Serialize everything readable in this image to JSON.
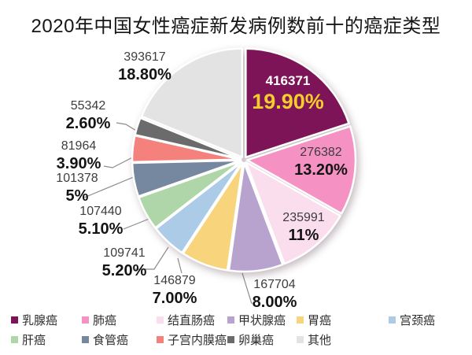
{
  "title": "2020年中国女性癌症新发病例数前十的癌症类型",
  "chart_data": {
    "type": "pie",
    "title": "2020年中国女性癌症新发病例数前十的癌症类型",
    "legend_position": "bottom",
    "start_angle": "12-o-clock",
    "direction": "clockwise",
    "slices": [
      {
        "label": "乳腺癌",
        "cases": 416371,
        "pct": 19.9,
        "value_label": "416371",
        "pct_label": "19.90%",
        "color": "#7d1457"
      },
      {
        "label": "肺癌",
        "cases": 276382,
        "pct": 13.2,
        "value_label": "276382",
        "pct_label": "13.20%",
        "color": "#f592c3"
      },
      {
        "label": "结直肠癌",
        "cases": 235991,
        "pct": 11.0,
        "value_label": "235991",
        "pct_label": "11%",
        "color": "#fbdeee"
      },
      {
        "label": "甲状腺癌",
        "cases": 167704,
        "pct": 8.0,
        "value_label": "167704",
        "pct_label": "8.00%",
        "color": "#b7a3ce"
      },
      {
        "label": "胃癌",
        "cases": 146879,
        "pct": 7.0,
        "value_label": "146879",
        "pct_label": "7.00%",
        "color": "#f8d47d"
      },
      {
        "label": "宫颈癌",
        "cases": 109741,
        "pct": 5.2,
        "value_label": "109741",
        "pct_label": "5.20%",
        "color": "#abcbe7"
      },
      {
        "label": "肝癌",
        "cases": 107440,
        "pct": 5.1,
        "value_label": "107440",
        "pct_label": "5.10%",
        "color": "#aed6a8"
      },
      {
        "label": "食管癌",
        "cases": 101378,
        "pct": 5.0,
        "value_label": "101378",
        "pct_label": "5%",
        "color": "#76889f"
      },
      {
        "label": "子宫内膜癌",
        "cases": 81964,
        "pct": 3.9,
        "value_label": "81964",
        "pct_label": "3.90%",
        "color": "#f4817c"
      },
      {
        "label": "卵巢癌",
        "cases": 55342,
        "pct": 2.6,
        "value_label": "55342",
        "pct_label": "2.60%",
        "color": "#6b6b6b"
      },
      {
        "label": "其他",
        "cases": 393617,
        "pct": 18.8,
        "value_label": "393617",
        "pct_label": "18.80%",
        "color": "#e3e3e3"
      }
    ],
    "highlight": {
      "slice": "乳腺癌",
      "value_color": "#ffffff",
      "pct_color": "#f3ce2c"
    }
  }
}
